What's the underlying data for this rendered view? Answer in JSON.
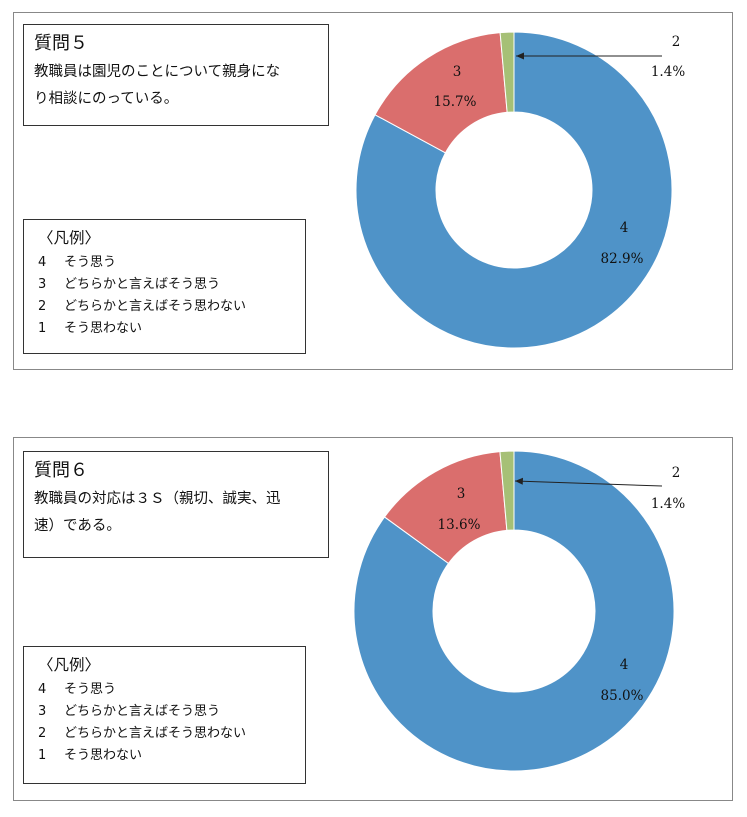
{
  "colors": {
    "v4": "#4f93c8",
    "v3": "#da6e6d",
    "v2": "#a6c076",
    "slice_edge": "#ffffff"
  },
  "panels": [
    {
      "question_title": "質問５",
      "question_lines": [
        "教職員は園児のことについて親身にな",
        "り相談にのっている。"
      ],
      "legend_title": "〈凡例〉",
      "legend_items": [
        {
          "num": "4",
          "text": "そう思う"
        },
        {
          "num": "3",
          "text": "どちらかと言えばそう思う"
        },
        {
          "num": "2",
          "text": "どちらかと言えばそう思わない"
        },
        {
          "num": "1",
          "text": "そう思わない"
        }
      ],
      "chart_data": {
        "type": "pie",
        "categories": [
          "4",
          "3",
          "2"
        ],
        "values": [
          82.9,
          15.7,
          1.4
        ],
        "labels": [
          {
            "category": "4",
            "value": "82.9%"
          },
          {
            "category": "3",
            "value": "15.7%"
          },
          {
            "category": "2",
            "value": "1.4%"
          }
        ]
      }
    },
    {
      "question_title": "質問６",
      "question_lines": [
        "教職員の対応は３Ｓ（親切、誠実、迅",
        "速）である。"
      ],
      "legend_title": "〈凡例〉",
      "legend_items": [
        {
          "num": "4",
          "text": "そう思う"
        },
        {
          "num": "3",
          "text": "どちらかと言えばそう思う"
        },
        {
          "num": "2",
          "text": "どちらかと言えばそう思わない"
        },
        {
          "num": "1",
          "text": "そう思わない"
        }
      ],
      "chart_data": {
        "type": "pie",
        "categories": [
          "4",
          "3",
          "2"
        ],
        "values": [
          85.0,
          13.6,
          1.4
        ],
        "labels": [
          {
            "category": "4",
            "value": "85.0%"
          },
          {
            "category": "3",
            "value": "13.6%"
          },
          {
            "category": "2",
            "value": "1.4%"
          }
        ]
      }
    }
  ]
}
